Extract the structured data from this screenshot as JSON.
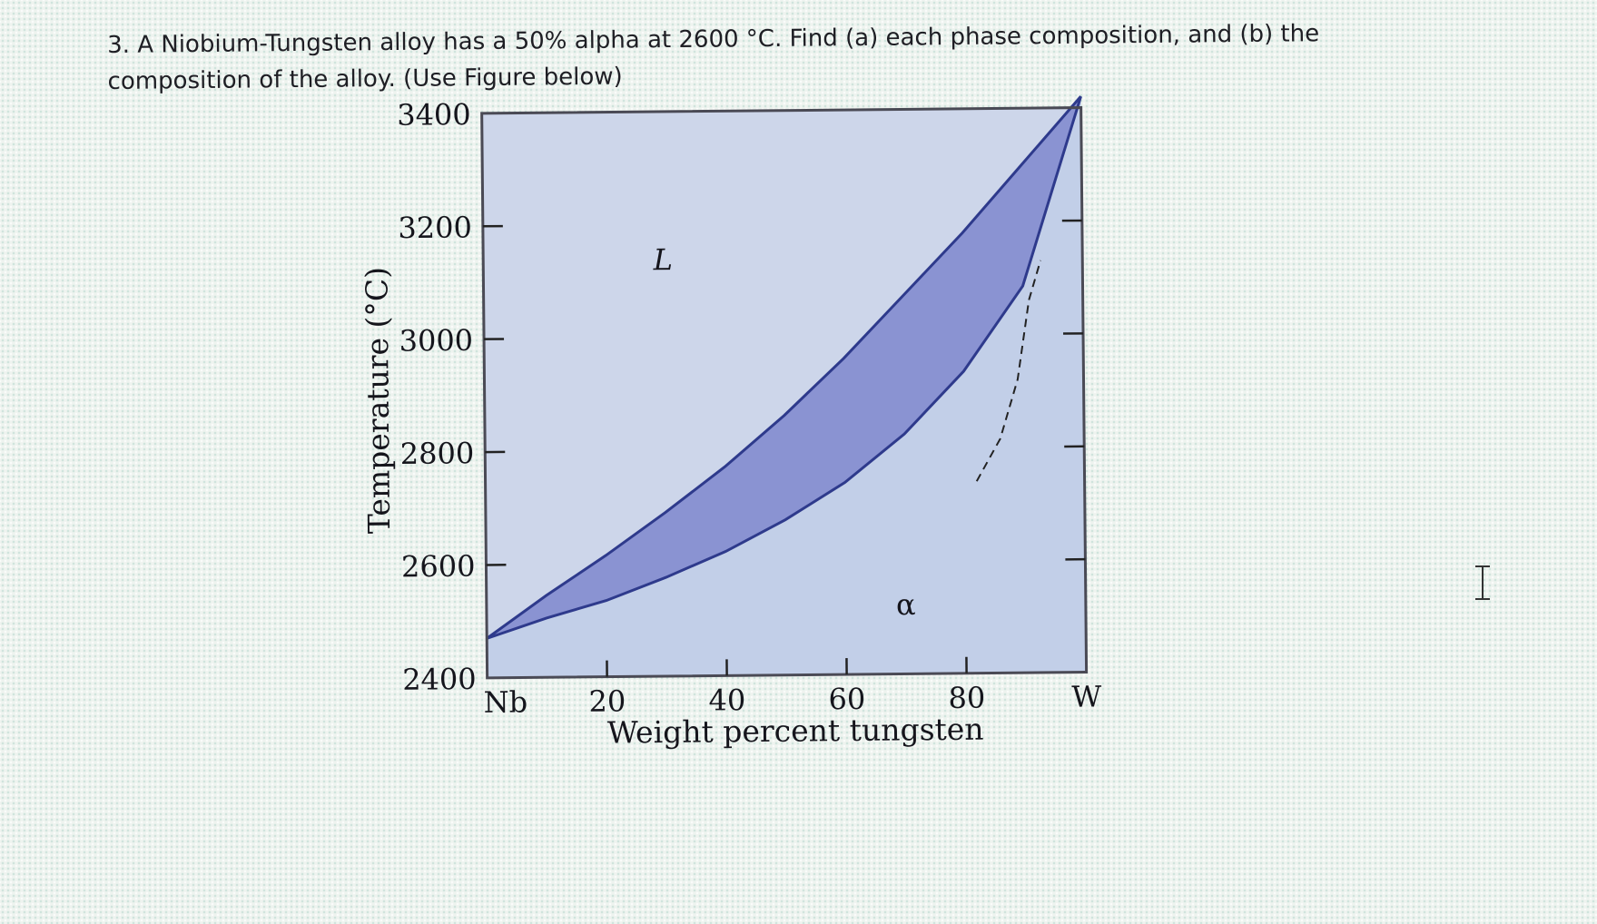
{
  "question": {
    "line1": "3. A Niobium-Tungsten alloy has a 50% alpha at 2600 °C. Find (a) each phase composition, and (b) the",
    "line2": "composition of the alloy. (Use Figure below)"
  },
  "colors": {
    "liquid_region": "#cdd6ea",
    "two_phase_region": "#8a93d2",
    "alpha_region": "#c2cfe8",
    "curve": "#2e3a8c",
    "frame": "#4a4a55"
  },
  "chart_data": {
    "type": "phase-diagram",
    "title": "",
    "xlabel": "Weight percent tungsten",
    "ylabel": "Temperature (°C)",
    "xlim": [
      0,
      100
    ],
    "ylim": [
      2400,
      3400
    ],
    "x_tick_labels": [
      {
        "value": 0,
        "label": "Nb"
      },
      {
        "value": 20,
        "label": "20"
      },
      {
        "value": 40,
        "label": "40"
      },
      {
        "value": 60,
        "label": "60"
      },
      {
        "value": 80,
        "label": "80"
      },
      {
        "value": 100,
        "label": "W"
      }
    ],
    "y_tick_labels": [
      {
        "value": 3400,
        "label": "3400"
      },
      {
        "value": 3200,
        "label": "3200"
      },
      {
        "value": 3000,
        "label": "3000"
      },
      {
        "value": 2800,
        "label": "2800"
      },
      {
        "value": 2600,
        "label": "2600"
      },
      {
        "value": 2400,
        "label": "2400"
      }
    ],
    "grid": false,
    "region_labels": [
      {
        "label": "L",
        "x": 30,
        "y": 3120
      },
      {
        "label": "α",
        "x": 70,
        "y": 2505
      }
    ],
    "series": [
      {
        "style": "solid",
        "points": [
          [
            0,
            2470
          ],
          [
            10,
            2545
          ],
          [
            20,
            2615
          ],
          [
            30,
            2690
          ],
          [
            40,
            2770
          ],
          [
            50,
            2860
          ],
          [
            60,
            2960
          ],
          [
            70,
            3070
          ],
          [
            80,
            3180
          ],
          [
            90,
            3300
          ],
          [
            100,
            3420
          ]
        ]
      },
      {
        "style": "solid",
        "points": [
          [
            0,
            2470
          ],
          [
            10,
            2505
          ],
          [
            20,
            2535
          ],
          [
            30,
            2575
          ],
          [
            40,
            2620
          ],
          [
            50,
            2675
          ],
          [
            60,
            2740
          ],
          [
            70,
            2825
          ],
          [
            80,
            2935
          ],
          [
            90,
            3085
          ],
          [
            100,
            3420
          ]
        ]
      },
      {
        "style": "dashed",
        "points": [
          [
            82,
            2740
          ],
          [
            86,
            2815
          ],
          [
            89,
            2920
          ],
          [
            91,
            3060
          ],
          [
            93,
            3130
          ]
        ]
      }
    ]
  }
}
